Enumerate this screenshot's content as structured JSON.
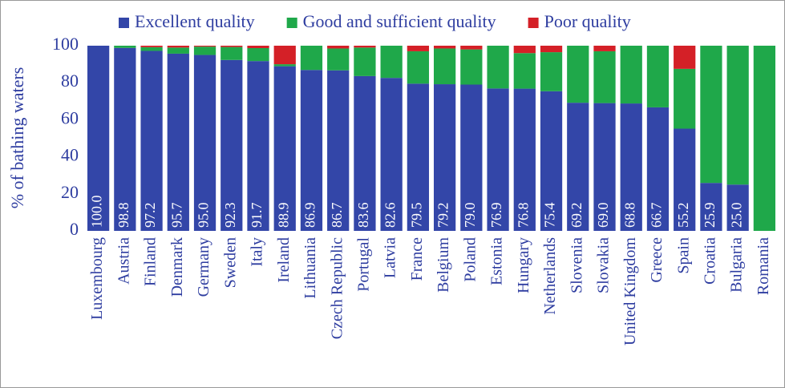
{
  "chart_data": {
    "type": "stacked_bar",
    "y_label": "% of bathing waters",
    "categories": [
      "Luxembourg",
      "Austria",
      "Finland",
      "Denmark",
      "Germany",
      "Sweden",
      "Italy",
      "Ireland",
      "Lithuania",
      "Czech Republic",
      "Portugal",
      "Latvia",
      "France",
      "Belgium",
      "Poland",
      "Estonia",
      "Hungary",
      "Netherlands",
      "Slovenia",
      "Slovakia",
      "United Kingdom",
      "Greece",
      "Spain",
      "Croatia",
      "Bulgaria",
      "Romania"
    ],
    "series": [
      {
        "name": "Excellent quality",
        "color": "#3346a8",
        "values": [
          100,
          98.8,
          97.2,
          95.7,
          95.0,
          92.3,
          91.7,
          88.9,
          86.9,
          86.7,
          83.6,
          82.6,
          79.5,
          79.2,
          79.0,
          76.9,
          76.8,
          75.4,
          69.2,
          69.0,
          68.8,
          66.7,
          55.2,
          25.9,
          25.0,
          0
        ],
        "value_labels": [
          "100.0",
          "98.8",
          "97.2",
          "95.7",
          "95.0",
          "92.3",
          "91.7",
          "88.9",
          "86.9",
          "86.7",
          "83.6",
          "82.6",
          "79.5",
          "79.2",
          "79.0",
          "76.9",
          "76.8",
          "75.4",
          "69.2",
          "69.0",
          "68.8",
          "66.7",
          "55.2",
          "25.9",
          "25.0",
          null
        ]
      },
      {
        "name": "Good and sufficient quality",
        "color": "#1fa84a",
        "values": [
          0,
          1.2,
          2.0,
          3.3,
          4.5,
          7.0,
          7.0,
          1.1,
          13.1,
          11.8,
          15.4,
          17.4,
          17.5,
          19.3,
          19.0,
          23.1,
          19.2,
          21.1,
          30.8,
          28.0,
          31.2,
          33.3,
          32.3,
          74.1,
          75.0,
          100
        ]
      },
      {
        "name": "Poor quality",
        "color": "#d42027",
        "values": [
          0,
          0,
          0.8,
          1.0,
          0.5,
          0.7,
          1.3,
          10.0,
          0,
          1.5,
          1.0,
          0,
          3.0,
          1.5,
          2.0,
          0,
          4.0,
          3.5,
          0,
          3.0,
          0,
          0,
          12.5,
          0,
          0,
          0
        ]
      }
    ],
    "ylim": [
      0,
      100
    ],
    "yticks": [
      0,
      20,
      40,
      60,
      80,
      100
    ]
  }
}
